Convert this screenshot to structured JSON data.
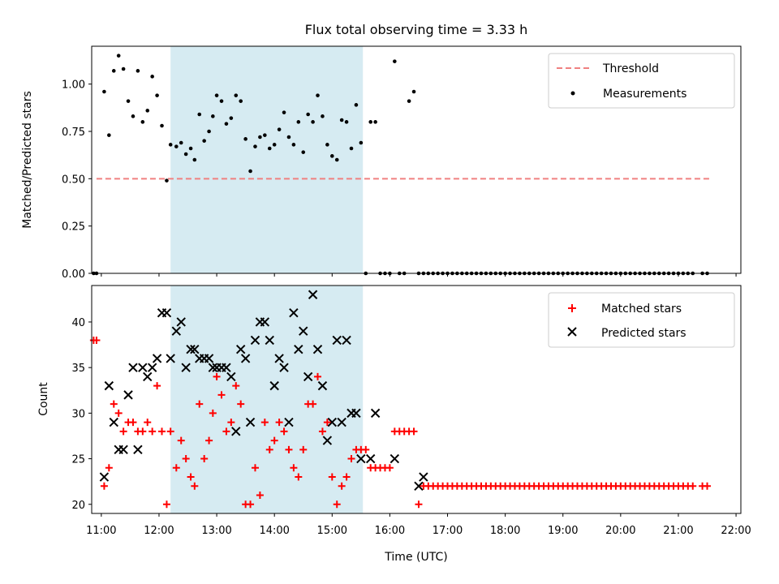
{
  "chart_data": [
    {
      "type": "scatter",
      "title": "Flux total observing time = 3.33 h",
      "ylabel": "Matched/Predicted stars",
      "xlabel": "",
      "xlim": [
        "10:50",
        "22:05"
      ],
      "ylim": [
        0.0,
        1.2
      ],
      "yticks": [
        "0.00",
        "0.25",
        "0.50",
        "0.75",
        "1.00"
      ],
      "highlight_span": [
        "12:12",
        "15:32"
      ],
      "legend_position": "top-right",
      "legend": [
        "Threshold",
        "Measurements"
      ],
      "threshold": {
        "name": "Threshold",
        "y": 0.5,
        "x_range": [
          "10:55",
          "21:35"
        ],
        "color": "#f08080",
        "style": "dashed"
      },
      "series": [
        {
          "name": "Measurements",
          "color": "#000000",
          "x": [
            "10:52",
            "10:55",
            "11:03",
            "11:08",
            "11:13",
            "11:18",
            "11:23",
            "11:28",
            "11:33",
            "11:38",
            "11:43",
            "11:48",
            "11:53",
            "11:58",
            "12:03",
            "12:08",
            "12:12",
            "12:18",
            "12:23",
            "12:28",
            "12:33",
            "12:37",
            "12:42",
            "12:47",
            "12:52",
            "12:56",
            "13:00",
            "13:05",
            "13:10",
            "13:15",
            "13:20",
            "13:25",
            "13:30",
            "13:35",
            "13:40",
            "13:45",
            "13:50",
            "13:55",
            "14:00",
            "14:05",
            "14:10",
            "14:15",
            "14:20",
            "14:25",
            "14:30",
            "14:35",
            "14:40",
            "14:45",
            "14:50",
            "14:55",
            "15:00",
            "15:05",
            "15:10",
            "15:15",
            "15:20",
            "15:25",
            "15:30",
            "15:35",
            "15:40",
            "15:45",
            "15:50",
            "15:55",
            "16:00",
            "16:05",
            "16:10",
            "16:15",
            "16:20",
            "16:25",
            "16:30",
            "16:35",
            "16:40",
            "16:45",
            "16:50",
            "16:55",
            "17:00",
            "17:05",
            "17:10",
            "17:15",
            "17:20",
            "17:25",
            "17:30",
            "17:35",
            "17:40",
            "17:45",
            "17:50",
            "17:55",
            "18:00",
            "18:05",
            "18:10",
            "18:15",
            "18:20",
            "18:25",
            "18:30",
            "18:35",
            "18:40",
            "18:45",
            "18:50",
            "18:55",
            "19:00",
            "19:05",
            "19:10",
            "19:15",
            "19:20",
            "19:25",
            "19:30",
            "19:35",
            "19:40",
            "19:45",
            "19:50",
            "19:55",
            "20:00",
            "20:05",
            "20:10",
            "20:15",
            "20:20",
            "20:25",
            "20:30",
            "20:35",
            "20:40",
            "20:45",
            "20:50",
            "20:55",
            "21:00",
            "21:05",
            "21:10",
            "21:15",
            "21:25",
            "21:30"
          ],
          "y": [
            0.0,
            0.0,
            0.96,
            0.73,
            1.07,
            1.15,
            1.08,
            0.91,
            0.83,
            1.07,
            0.8,
            0.86,
            1.04,
            0.94,
            0.78,
            0.49,
            0.68,
            0.67,
            0.69,
            0.63,
            0.66,
            0.6,
            0.84,
            0.7,
            0.75,
            0.83,
            0.94,
            0.91,
            0.79,
            0.82,
            0.94,
            0.91,
            0.71,
            0.54,
            0.67,
            0.72,
            0.73,
            0.66,
            0.68,
            0.76,
            0.85,
            0.72,
            0.68,
            0.8,
            0.64,
            0.84,
            0.8,
            0.94,
            0.83,
            0.68,
            0.62,
            0.6,
            0.81,
            0.8,
            0.66,
            0.89,
            0.69,
            0.0,
            0.8,
            0.8,
            0.0,
            0.0,
            0.0,
            1.12,
            0.0,
            0.0,
            0.91,
            0.96,
            0.0,
            0.0,
            0.0,
            0.0,
            0.0,
            0.0,
            0.0,
            0.0,
            0.0,
            0.0,
            0.0,
            0.0,
            0.0,
            0.0,
            0.0,
            0.0,
            0.0,
            0.0,
            0.0,
            0.0,
            0.0,
            0.0,
            0.0,
            0.0,
            0.0,
            0.0,
            0.0,
            0.0,
            0.0,
            0.0,
            0.0,
            0.0,
            0.0,
            0.0,
            0.0,
            0.0,
            0.0,
            0.0,
            0.0,
            0.0,
            0.0,
            0.0,
            0.0,
            0.0,
            0.0,
            0.0,
            0.0,
            0.0,
            0.0,
            0.0,
            0.0,
            0.0,
            0.0,
            0.0,
            0.0,
            0.0,
            0.0,
            0.0,
            0.0,
            0.0
          ]
        }
      ]
    },
    {
      "type": "scatter",
      "title": "",
      "xlabel": "Time (UTC)",
      "ylabel": "Count",
      "xlim": [
        "10:50",
        "22:05"
      ],
      "ylim": [
        19,
        44
      ],
      "xticks": [
        "11:00",
        "12:00",
        "13:00",
        "14:00",
        "15:00",
        "16:00",
        "17:00",
        "18:00",
        "19:00",
        "20:00",
        "21:00",
        "22:00"
      ],
      "yticks": [
        "20",
        "25",
        "30",
        "35",
        "40"
      ],
      "highlight_span": [
        "12:12",
        "15:32"
      ],
      "legend_position": "top-right",
      "legend": [
        "Matched stars",
        "Predicted stars"
      ],
      "series": [
        {
          "name": "Matched stars",
          "marker": "+",
          "color": "#ff0000",
          "x": [
            "10:52",
            "10:55",
            "11:03",
            "11:08",
            "11:13",
            "11:18",
            "11:23",
            "11:28",
            "11:33",
            "11:38",
            "11:43",
            "11:48",
            "11:53",
            "11:58",
            "12:03",
            "12:08",
            "12:12",
            "12:18",
            "12:23",
            "12:28",
            "12:33",
            "12:37",
            "12:42",
            "12:47",
            "12:52",
            "12:56",
            "13:00",
            "13:05",
            "13:10",
            "13:15",
            "13:20",
            "13:25",
            "13:30",
            "13:35",
            "13:40",
            "13:45",
            "13:50",
            "13:55",
            "14:00",
            "14:05",
            "14:10",
            "14:15",
            "14:20",
            "14:25",
            "14:30",
            "14:35",
            "14:40",
            "14:45",
            "14:50",
            "14:55",
            "15:00",
            "15:05",
            "15:10",
            "15:15",
            "15:20",
            "15:25",
            "15:30",
            "15:35",
            "15:40",
            "15:45",
            "15:50",
            "15:55",
            "16:00",
            "16:05",
            "16:10",
            "16:15",
            "16:20",
            "16:25",
            "16:30",
            "16:35",
            "16:40",
            "16:45",
            "16:50",
            "16:55",
            "17:00",
            "17:05",
            "17:10",
            "17:15",
            "17:20",
            "17:25",
            "17:30",
            "17:35",
            "17:40",
            "17:45",
            "17:50",
            "17:55",
            "18:00",
            "18:05",
            "18:10",
            "18:15",
            "18:20",
            "18:25",
            "18:30",
            "18:35",
            "18:40",
            "18:45",
            "18:50",
            "18:55",
            "19:00",
            "19:05",
            "19:10",
            "19:15",
            "19:20",
            "19:25",
            "19:30",
            "19:35",
            "19:40",
            "19:45",
            "19:50",
            "19:55",
            "20:00",
            "20:05",
            "20:10",
            "20:15",
            "20:20",
            "20:25",
            "20:30",
            "20:35",
            "20:40",
            "20:45",
            "20:50",
            "20:55",
            "21:00",
            "21:05",
            "21:10",
            "21:15",
            "21:25",
            "21:30"
          ],
          "y": [
            38,
            38,
            22,
            24,
            31,
            30,
            28,
            29,
            29,
            28,
            28,
            29,
            28,
            33,
            28,
            20,
            28,
            24,
            27,
            25,
            23,
            22,
            31,
            25,
            27,
            30,
            34,
            32,
            28,
            29,
            33,
            31,
            20,
            20,
            24,
            21,
            29,
            26,
            27,
            29,
            28,
            26,
            24,
            23,
            26,
            31,
            31,
            34,
            28,
            29,
            23,
            20,
            22,
            23,
            25,
            26,
            26,
            26,
            24,
            24,
            24,
            24,
            24,
            28,
            28,
            28,
            28,
            28,
            20,
            22,
            22,
            22,
            22,
            22,
            22,
            22,
            22,
            22,
            22,
            22,
            22,
            22,
            22,
            22,
            22,
            22,
            22,
            22,
            22,
            22,
            22,
            22,
            22,
            22,
            22,
            22,
            22,
            22,
            22,
            22,
            22,
            22,
            22,
            22,
            22,
            22,
            22,
            22,
            22,
            22,
            22,
            22,
            22,
            22,
            22,
            22,
            22,
            22,
            22,
            22,
            22,
            22,
            22,
            22,
            22,
            22,
            22,
            22
          ]
        },
        {
          "name": "Predicted stars",
          "marker": "x",
          "color": "#000000",
          "x": [
            "11:03",
            "11:08",
            "11:13",
            "11:18",
            "11:23",
            "11:28",
            "11:33",
            "11:38",
            "11:43",
            "11:48",
            "11:53",
            "11:58",
            "12:03",
            "12:08",
            "12:12",
            "12:18",
            "12:23",
            "12:28",
            "12:33",
            "12:37",
            "12:42",
            "12:47",
            "12:52",
            "12:56",
            "13:00",
            "13:05",
            "13:10",
            "13:15",
            "13:20",
            "13:25",
            "13:30",
            "13:35",
            "13:40",
            "13:45",
            "13:50",
            "13:55",
            "14:00",
            "14:05",
            "14:10",
            "14:15",
            "14:20",
            "14:25",
            "14:30",
            "14:35",
            "14:40",
            "14:45",
            "14:50",
            "14:55",
            "15:00",
            "15:05",
            "15:10",
            "15:15",
            "15:20",
            "15:25",
            "15:30",
            "15:40",
            "15:45",
            "16:05",
            "16:30",
            "16:35"
          ],
          "y": [
            23,
            33,
            29,
            26,
            26,
            32,
            35,
            26,
            35,
            34,
            35,
            36,
            41,
            41,
            36,
            39,
            40,
            35,
            37,
            37,
            36,
            36,
            36,
            35,
            35,
            35,
            35,
            34,
            28,
            37,
            36,
            29,
            38,
            40,
            40,
            38,
            33,
            36,
            35,
            29,
            41,
            37,
            39,
            34,
            43,
            37,
            33,
            27,
            29,
            38,
            29,
            38,
            30,
            30,
            25,
            25,
            30,
            25,
            22,
            23
          ]
        }
      ]
    }
  ]
}
